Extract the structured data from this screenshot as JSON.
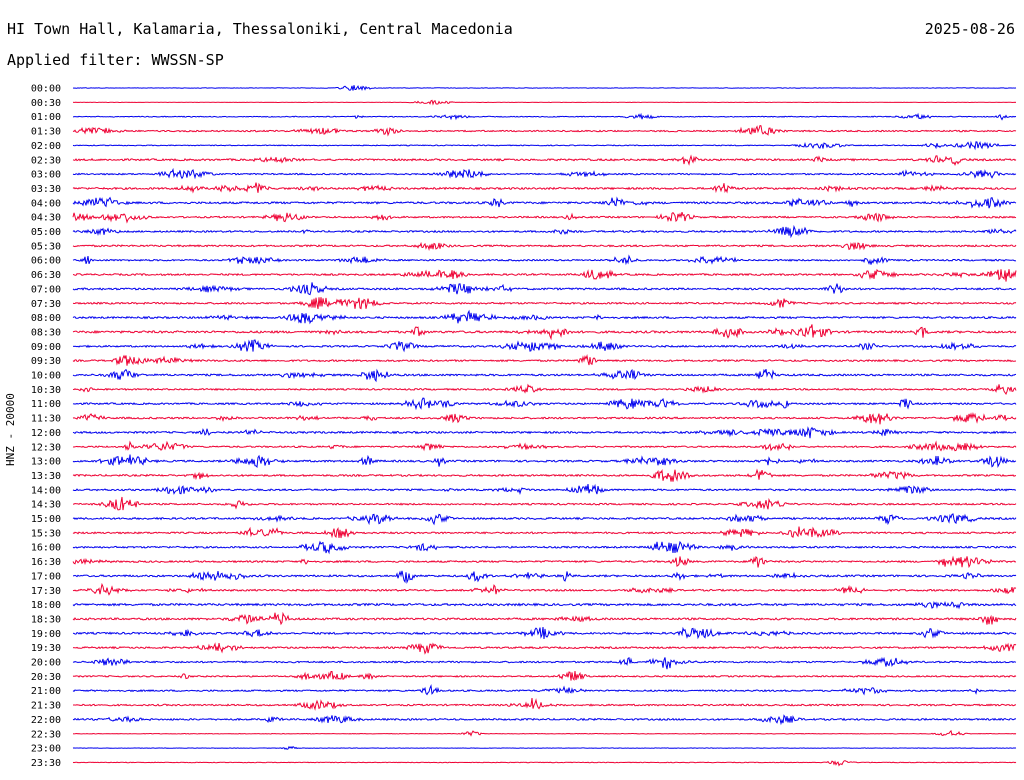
{
  "header": {
    "station": "HI Town Hall, Kalamaria, Thessaloniki, Central Macedonia",
    "date": "2025-08-26",
    "filter": "Applied filter: WWSSN-SP"
  },
  "chart_data": {
    "type": "line",
    "title": "HI Town Hall, Kalamaria, Thessaloniki, Central Macedonia",
    "ylabel": "HNZ - 20000",
    "line_colors": [
      "#0000ee",
      "#ee0033"
    ],
    "row_labels": [
      "00:00",
      "00:30",
      "01:00",
      "01:30",
      "02:00",
      "02:30",
      "03:00",
      "03:30",
      "04:00",
      "04:30",
      "05:00",
      "05:30",
      "06:00",
      "06:30",
      "07:00",
      "07:30",
      "08:00",
      "08:30",
      "09:00",
      "09:30",
      "10:00",
      "10:30",
      "11:00",
      "11:30",
      "12:00",
      "12:30",
      "13:00",
      "13:30",
      "14:00",
      "14:30",
      "15:00",
      "15:30",
      "16:00",
      "16:30",
      "17:00",
      "17:30",
      "18:00",
      "18:30",
      "19:00",
      "19:30",
      "20:00",
      "20:30",
      "21:00",
      "21:30",
      "22:00",
      "22:30",
      "23:00",
      "23:30"
    ],
    "noise_level": [
      0.3,
      0.2,
      0.6,
      1.0,
      0.6,
      1.3,
      1.0,
      1.3,
      1.4,
      1.1,
      1.2,
      1.2,
      1.1,
      1.2,
      1.3,
      1.2,
      1.3,
      1.5,
      1.2,
      1.2,
      1.3,
      1.1,
      1.2,
      1.2,
      1.3,
      1.1,
      1.3,
      1.2,
      1.2,
      1.1,
      1.3,
      1.2,
      1.2,
      1.2,
      1.3,
      1.2,
      1.5,
      1.4,
      1.3,
      1.2,
      1.1,
      1.0,
      1.1,
      1.1,
      1.2,
      0.4,
      0.3,
      0.4
    ]
  }
}
